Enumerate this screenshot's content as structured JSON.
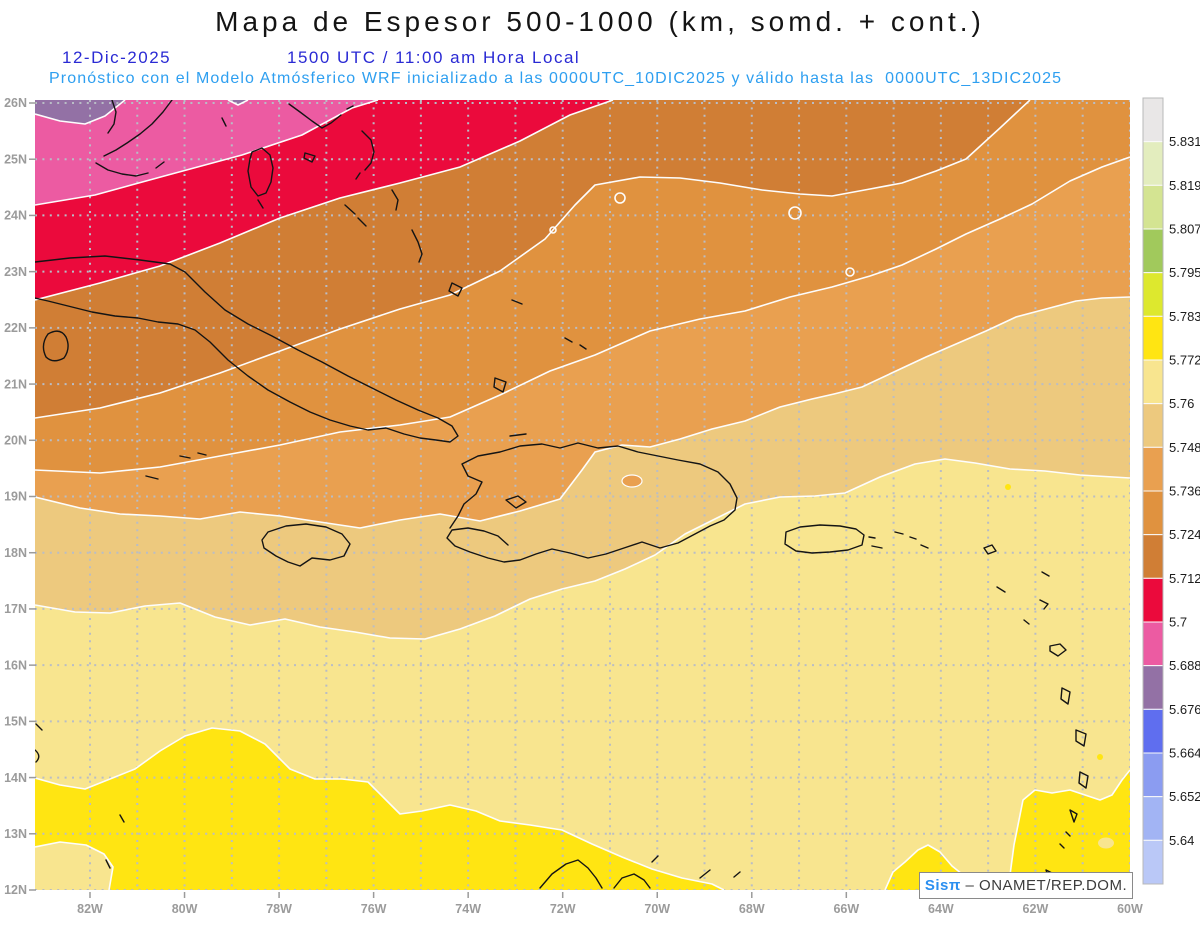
{
  "title": "Mapa de Espesor 500-1000 (km, somd. + cont.)",
  "header": {
    "date": "12-Dic-2025",
    "time": "1500 UTC / 11:00 am Hora Local",
    "forecast": "Pronóstico con el Modelo Atmósferico WRF inicializado a las 0000UTC_10DIC2025 y válido hasta las  0000UTC_13DIC2025",
    "date_color": "#2a2ad4",
    "forecast_color": "#2e9ff0"
  },
  "map": {
    "lat_labels": [
      "26N",
      "25N",
      "24N",
      "23N",
      "22N",
      "21N",
      "20N",
      "19N",
      "18N",
      "17N",
      "16N",
      "15N",
      "14N",
      "13N",
      "12N"
    ],
    "lon_labels": [
      "82W",
      "80W",
      "78W",
      "76W",
      "74W",
      "72W",
      "70W",
      "68W",
      "66W",
      "64W",
      "62W",
      "60W"
    ],
    "grid_color": "#b9bdc6",
    "tick_color": "#9b9b9b",
    "tick_label_color": "#9b9b9b",
    "coast_color": "#141414",
    "contour_color": "#fdfdfd"
  },
  "palette": {
    "gray": "#e9e7e7",
    "pale_green": "#e3edbe",
    "yellow_green": "#d4e492",
    "green": "#a1c95c",
    "chartreuse": "#dde82e",
    "yellow": "#ffe512",
    "pale_yellow": "#f8e58f",
    "tan": "#edc97e",
    "light_orange": "#e9a050",
    "orange": "#e0923f",
    "dark_orange": "#d07e35",
    "red": "#eb0a3c",
    "pink": "#ec5ba2",
    "mauve": "#9371a5",
    "violet": "#5f6eef",
    "blue": "#8b9cf1",
    "light_blue": "#a2b4f4",
    "pale_blue": "#bac8f7"
  },
  "colorbar": {
    "labels": [
      "5.831",
      "5.819",
      "5.807",
      "5.795",
      "5.783",
      "5.772",
      "5.76",
      "5.748",
      "5.736",
      "5.724",
      "5.712",
      "5.7",
      "5.688",
      "5.676",
      "5.664",
      "5.652",
      "5.64"
    ],
    "colors_top_to_bottom": [
      "gray",
      "pale_green",
      "yellow_green",
      "green",
      "chartreuse",
      "yellow",
      "pale_yellow",
      "tan",
      "light_orange",
      "orange",
      "dark_orange",
      "red",
      "pink",
      "mauve",
      "violet",
      "blue",
      "light_blue",
      "pale_blue"
    ],
    "label_color": "#1c1c1c",
    "frame_color": "#b8b8b8"
  },
  "attribution": {
    "brand": "Sisπ",
    "text": " – ONAMET/REP.DOM."
  }
}
